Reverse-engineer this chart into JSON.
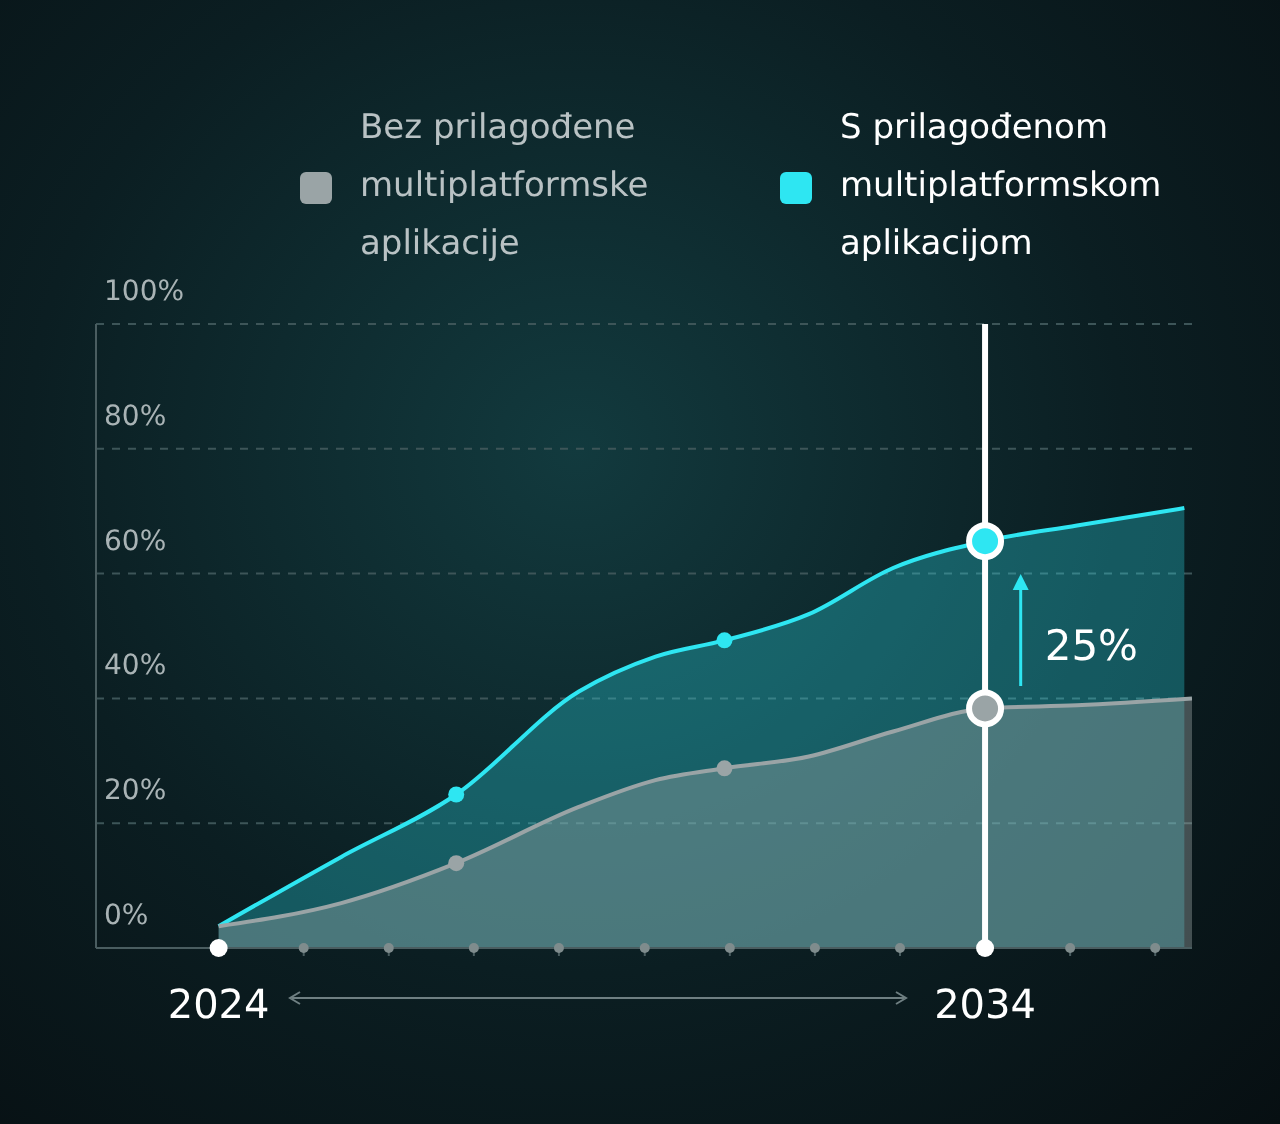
{
  "chart_data": {
    "type": "area",
    "series": [
      {
        "name": "S prilagođenom multiplatformskom aplikacijom",
        "color": "#2ee6f2",
        "x": [
          2024,
          2025.6,
          2027.1,
          2028.7,
          2029.7,
          2030.6,
          2031.7,
          2032.8,
          2034,
          2035.2,
          2036.6
        ],
        "values": [
          3.5,
          14.6,
          24.6,
          41.1,
          46.7,
          49.3,
          53.5,
          60.9,
          65.2,
          67.7,
          70.5
        ]
      },
      {
        "name": "Bez prilagođene multiplatformske aplikacije",
        "color": "#9aa4a6",
        "x": [
          2024,
          2025.6,
          2027.1,
          2028.7,
          2029.7,
          2030.6,
          2031.7,
          2032.8,
          2034,
          2035.2,
          2036.7
        ],
        "values": [
          3.5,
          7.2,
          13.6,
          22.6,
          26.9,
          28.8,
          30.7,
          34.7,
          38.4,
          38.9,
          40.0
        ]
      },
      {
        "type": "scatter",
        "marker": "circle",
        "color": "#2ee6f2",
        "x": [
          2027.1,
          2030.6
        ],
        "values": [
          24.6,
          49.3
        ]
      },
      {
        "type": "scatter",
        "marker": "circle",
        "color": "#9aa4a6",
        "x": [
          2027.1,
          2030.6
        ],
        "values": [
          13.6,
          28.8
        ]
      },
      {
        "type": "scatter",
        "marker": "circle",
        "color": "#2ee6f2",
        "x": [
          2034
        ],
        "values": [
          65.2
        ]
      },
      {
        "type": "scatter",
        "marker": "circle",
        "color": "#9aa4a6",
        "x": [
          2034
        ],
        "values": [
          38.4
        ]
      }
    ],
    "xlim": [
      2022.4,
      2036.7
    ],
    "xticks": [
      {
        "value": 2024,
        "label": "2024"
      },
      {
        "value": 2025.11,
        "label": null
      },
      {
        "value": 2026.22,
        "label": null
      },
      {
        "value": 2027.33,
        "label": null
      },
      {
        "value": 2028.44,
        "label": null
      },
      {
        "value": 2029.56,
        "label": null
      },
      {
        "value": 2030.67,
        "label": null
      },
      {
        "value": 2031.78,
        "label": null
      },
      {
        "value": 2032.89,
        "label": null
      },
      {
        "value": 2034,
        "label": "2034"
      },
      {
        "value": 2035.11,
        "label": null
      },
      {
        "value": 2036.22,
        "label": null
      }
    ],
    "ylim": [
      0,
      100
    ],
    "yticks": [
      {
        "value": 0,
        "label": "0%"
      },
      {
        "value": 20,
        "label": "20%"
      },
      {
        "value": 40,
        "label": "40%"
      },
      {
        "value": 60,
        "label": "60%"
      },
      {
        "value": 80,
        "label": "80%"
      },
      {
        "value": 100,
        "label": "100%"
      }
    ],
    "grid": "y",
    "legend": "top",
    "ref_lines": [
      {
        "axis": "x",
        "value": 2034,
        "color": "#ffffff"
      }
    ],
    "annotations": [
      "25%"
    ]
  }
}
